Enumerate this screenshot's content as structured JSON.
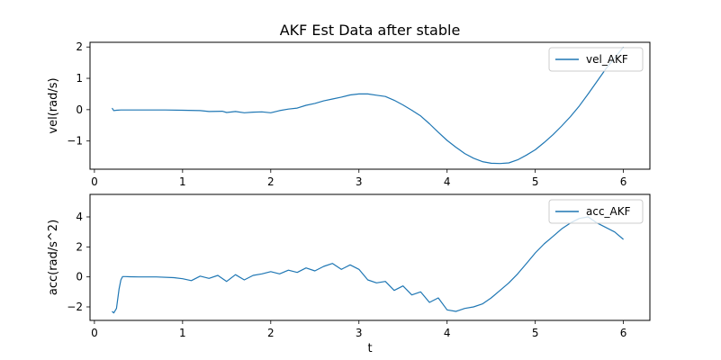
{
  "chart_data": [
    {
      "type": "line",
      "title": "AKF Est Data after stable",
      "xlabel": "",
      "ylabel": "vel(rad/s)",
      "xlim": [
        -0.05,
        6.3
      ],
      "ylim": [
        -1.9,
        2.15
      ],
      "xticks": [
        0,
        1,
        2,
        3,
        4,
        5,
        6
      ],
      "yticks": [
        -1,
        0,
        1,
        2
      ],
      "legend_position": "top-right",
      "series": [
        {
          "name": "vel_AKF",
          "color": "#1f77b4",
          "x": [
            0.2,
            0.22,
            0.25,
            0.3,
            0.5,
            0.8,
            1.0,
            1.2,
            1.3,
            1.45,
            1.5,
            1.6,
            1.7,
            1.8,
            1.9,
            2.0,
            2.1,
            2.2,
            2.3,
            2.4,
            2.5,
            2.6,
            2.7,
            2.8,
            2.9,
            3.0,
            3.1,
            3.2,
            3.3,
            3.4,
            3.5,
            3.6,
            3.7,
            3.8,
            3.9,
            4.0,
            4.1,
            4.2,
            4.3,
            4.4,
            4.5,
            4.6,
            4.7,
            4.8,
            4.9,
            5.0,
            5.1,
            5.2,
            5.3,
            5.4,
            5.5,
            5.6,
            5.7,
            5.8,
            5.9,
            6.0
          ],
          "y": [
            0.05,
            -0.03,
            -0.02,
            -0.01,
            -0.01,
            -0.01,
            -0.02,
            -0.03,
            -0.06,
            -0.05,
            -0.09,
            -0.06,
            -0.1,
            -0.08,
            -0.07,
            -0.1,
            -0.03,
            0.02,
            0.05,
            0.14,
            0.2,
            0.28,
            0.34,
            0.4,
            0.47,
            0.5,
            0.5,
            0.46,
            0.42,
            0.3,
            0.15,
            -0.02,
            -0.2,
            -0.45,
            -0.72,
            -0.98,
            -1.2,
            -1.4,
            -1.55,
            -1.66,
            -1.71,
            -1.72,
            -1.7,
            -1.6,
            -1.45,
            -1.28,
            -1.05,
            -0.8,
            -0.52,
            -0.22,
            0.12,
            0.5,
            0.9,
            1.3,
            1.65,
            2.0
          ]
        }
      ]
    },
    {
      "type": "line",
      "title": "",
      "xlabel": "t",
      "ylabel": "acc(rad/s^2)",
      "xlim": [
        -0.05,
        6.3
      ],
      "ylim": [
        -2.9,
        5.5
      ],
      "xticks": [
        0,
        1,
        2,
        3,
        4,
        5,
        6
      ],
      "yticks": [
        -2,
        0,
        2,
        4
      ],
      "legend_position": "top-right",
      "series": [
        {
          "name": "acc_AKF",
          "color": "#1f77b4",
          "x": [
            0.2,
            0.22,
            0.25,
            0.28,
            0.3,
            0.32,
            0.35,
            0.4,
            0.5,
            0.7,
            0.9,
            1.0,
            1.1,
            1.2,
            1.3,
            1.4,
            1.5,
            1.6,
            1.7,
            1.8,
            1.9,
            2.0,
            2.1,
            2.2,
            2.3,
            2.4,
            2.5,
            2.6,
            2.7,
            2.8,
            2.9,
            3.0,
            3.1,
            3.2,
            3.3,
            3.4,
            3.5,
            3.6,
            3.7,
            3.8,
            3.9,
            4.0,
            4.1,
            4.2,
            4.3,
            4.4,
            4.5,
            4.6,
            4.7,
            4.8,
            4.9,
            5.0,
            5.1,
            5.2,
            5.3,
            5.4,
            5.5,
            5.6,
            5.7,
            5.8,
            5.9,
            6.0
          ],
          "y": [
            -2.3,
            -2.4,
            -2.1,
            -0.8,
            -0.2,
            0.02,
            0.02,
            0.01,
            0.0,
            0.0,
            -0.05,
            -0.12,
            -0.25,
            0.05,
            -0.1,
            0.1,
            -0.3,
            0.15,
            -0.2,
            0.1,
            0.2,
            0.35,
            0.2,
            0.45,
            0.3,
            0.6,
            0.4,
            0.7,
            0.9,
            0.5,
            0.8,
            0.5,
            -0.2,
            -0.4,
            -0.3,
            -0.9,
            -0.6,
            -1.2,
            -1.0,
            -1.7,
            -1.4,
            -2.2,
            -2.3,
            -2.1,
            -2.0,
            -1.8,
            -1.4,
            -0.9,
            -0.4,
            0.2,
            0.9,
            1.6,
            2.2,
            2.7,
            3.2,
            3.6,
            3.9,
            4.0,
            3.6,
            3.3,
            3.0,
            2.5
          ]
        }
      ]
    }
  ]
}
